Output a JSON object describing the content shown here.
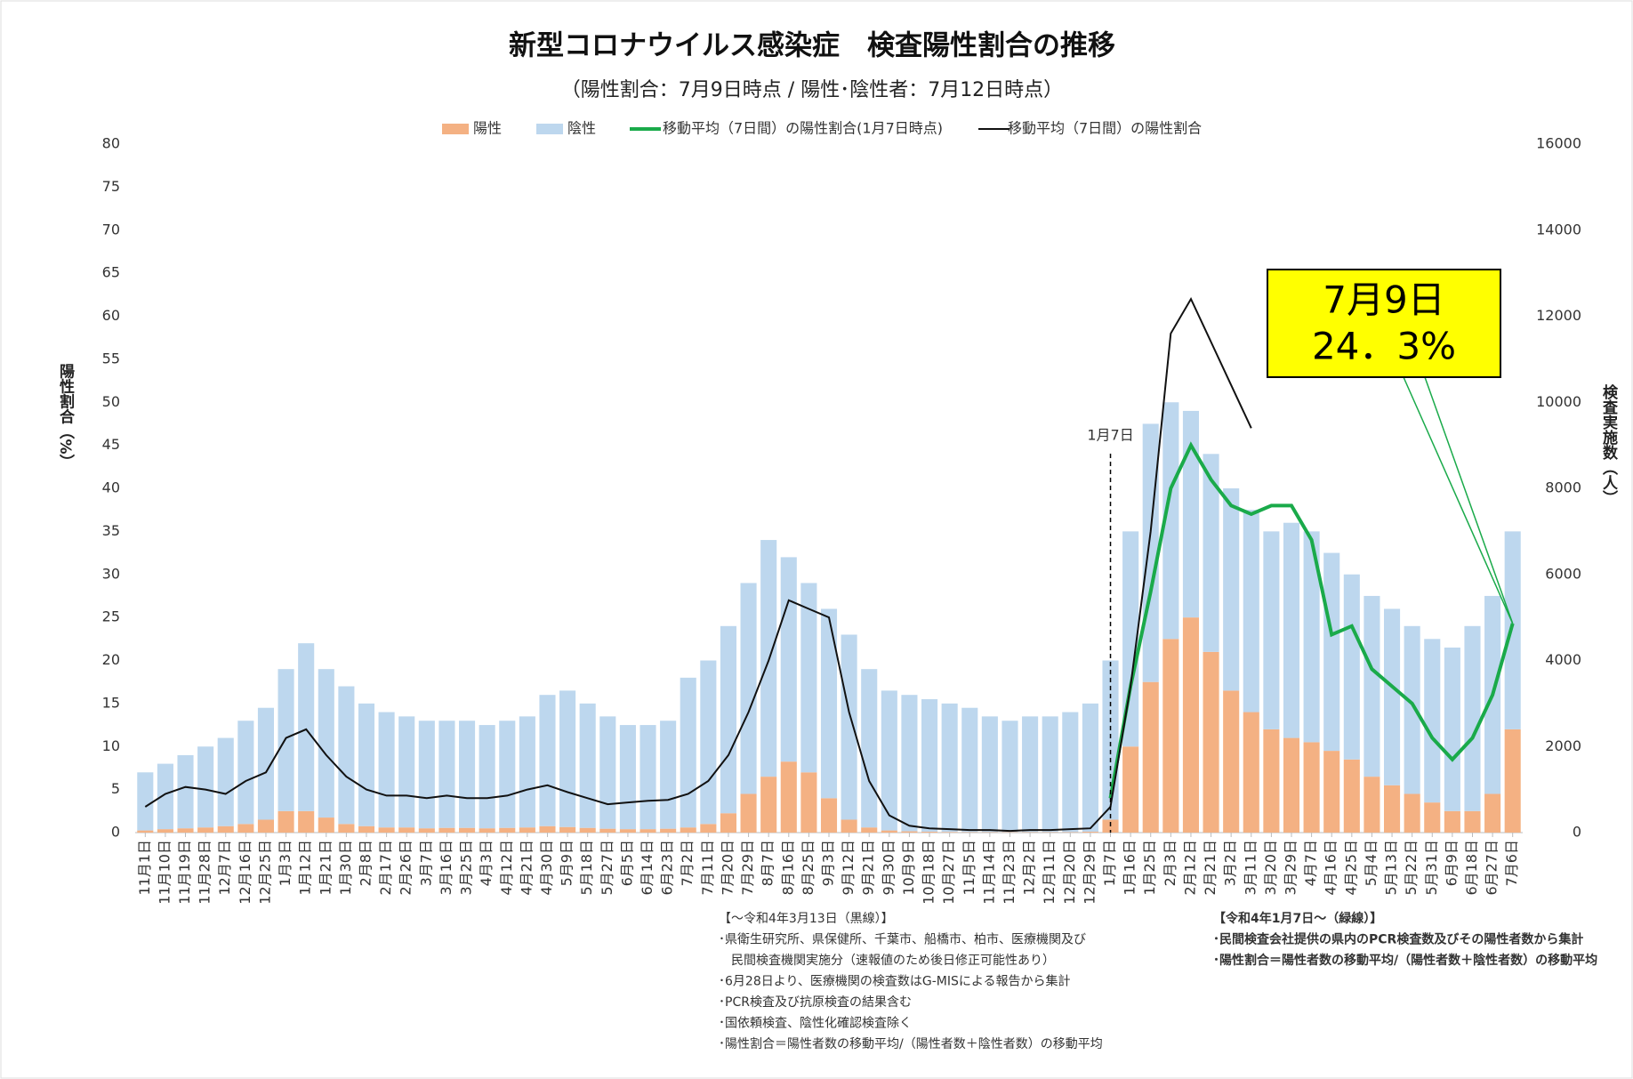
{
  "chart_data": {
    "type": "bar-line",
    "title": "新型コロナウイルス感染症　検査陽性割合の推移",
    "subtitle": "（陽性割合：7月9日時点 / 陽性･陰性者：7月12日時点）",
    "y_label": "陽性割合（%）",
    "y2_label": "検査実施数（人）",
    "annotation": "1月7日",
    "callout": [
      "7月9日",
      "24．3%"
    ],
    "notes_left": [
      "【～令和4年3月13日（黒線）】",
      "･県衛生研究所、県保健所、千葉市、船橋市、柏市、医療機関及び",
      "　民間検査機関実施分（速報値のため後日修正可能性あり）",
      "･6月28日より、医療機関の検査数はG-MISによる報告から集計",
      "･PCR検査及び抗原検査の結果含む",
      "･国依頼検査、陰性化確認検査除く",
      "･陽性割合＝陽性者数の移動平均/（陽性者数＋陰性者数）の移動平均"
    ],
    "notes_right": [
      "【令和4年1月7日～（緑線）】",
      "･民間検査会社提供の県内のPCR検査数及びその陽性者数から集計",
      "･陽性割合＝陽性者数の移動平均/（陽性者数＋陰性者数）の移動平均"
    ],
    "categories": [
      "11月1日",
      "11月10日",
      "11月19日",
      "11月28日",
      "12月7日",
      "12月16日",
      "12月25日",
      "1月3日",
      "1月12日",
      "1月21日",
      "1月30日",
      "2月8日",
      "2月17日",
      "2月26日",
      "3月7日",
      "3月16日",
      "3月25日",
      "4月3日",
      "4月12日",
      "4月21日",
      "4月30日",
      "5月9日",
      "5月18日",
      "5月27日",
      "6月5日",
      "6月14日",
      "6月23日",
      "7月2日",
      "7月11日",
      "7月20日",
      "7月29日",
      "8月7日",
      "8月16日",
      "8月25日",
      "9月3日",
      "9月12日",
      "9月21日",
      "9月30日",
      "10月9日",
      "10月18日",
      "10月27日",
      "11月5日",
      "11月14日",
      "11月23日",
      "12月2日",
      "12月11日",
      "12月20日",
      "12月29日",
      "1月7日",
      "1月16日",
      "1月25日",
      "2月3日",
      "2月12日",
      "2月21日",
      "3月2日",
      "3月11日",
      "3月20日",
      "3月29日",
      "4月7日",
      "4月16日",
      "4月25日",
      "5月4日",
      "5月13日",
      "5月22日",
      "5月31日",
      "6月9日",
      "6月18日",
      "6月27日",
      "7月6日"
    ],
    "series": [
      {
        "name": "陽性",
        "kind": "bar",
        "axis": "y2",
        "color": "#f4b183",
        "values": [
          50,
          80,
          100,
          120,
          150,
          200,
          300,
          500,
          500,
          350,
          200,
          150,
          120,
          120,
          100,
          110,
          110,
          100,
          110,
          120,
          150,
          130,
          110,
          90,
          80,
          80,
          90,
          120,
          200,
          450,
          900,
          1300,
          1650,
          1400,
          800,
          300,
          120,
          50,
          30,
          20,
          15,
          10,
          10,
          10,
          10,
          10,
          10,
          20,
          300,
          2000,
          3500,
          4500,
          5000,
          4200,
          3300,
          2800,
          2400,
          2200,
          2100,
          1900,
          1700,
          1300,
          1100,
          900,
          700,
          500,
          500,
          900,
          2400
        ]
      },
      {
        "name": "陰性",
        "kind": "bar",
        "axis": "y2",
        "color": "#bdd7ee",
        "values": [
          1350,
          1520,
          1700,
          1880,
          2050,
          2400,
          2600,
          3300,
          3900,
          3450,
          3200,
          2850,
          2680,
          2580,
          2500,
          2490,
          2490,
          2400,
          2490,
          2580,
          3050,
          3170,
          2890,
          2610,
          2420,
          2420,
          2510,
          3480,
          3800,
          4350,
          4900,
          5500,
          4750,
          4400,
          4400,
          4300,
          3680,
          3250,
          3170,
          3080,
          2985,
          2890,
          2690,
          2590,
          2690,
          2690,
          2790,
          2980,
          3700,
          5000,
          6000,
          5500,
          4800,
          4600,
          4700,
          4700,
          4600,
          5000,
          4900,
          4600,
          4300,
          4200,
          4100,
          3900,
          3800,
          3800,
          4300,
          4600,
          4600
        ]
      },
      {
        "name": "移動平均（7日間）の陽性割合(1月7日時点)",
        "kind": "line",
        "color": "#1aaa4a",
        "values": [
          null,
          null,
          null,
          null,
          null,
          null,
          null,
          null,
          null,
          null,
          null,
          null,
          null,
          null,
          null,
          null,
          null,
          null,
          null,
          null,
          null,
          null,
          null,
          null,
          null,
          null,
          null,
          null,
          null,
          null,
          null,
          null,
          null,
          null,
          null,
          null,
          null,
          null,
          null,
          null,
          null,
          null,
          null,
          null,
          null,
          null,
          null,
          null,
          4,
          17,
          28,
          40,
          45,
          41,
          38,
          37,
          38,
          38,
          34,
          23,
          24,
          19,
          17,
          15,
          11,
          8.5,
          11,
          16,
          24.3
        ]
      },
      {
        "name": "移動平均（7日間）の陽性割合",
        "kind": "line",
        "color": "#111111",
        "values": [
          3,
          4.5,
          5.3,
          5,
          4.5,
          6,
          7,
          11,
          12,
          9,
          6.5,
          5,
          4.3,
          4.3,
          4,
          4.3,
          4,
          4,
          4.3,
          5,
          5.5,
          4.7,
          4,
          3.3,
          3.5,
          3.7,
          3.8,
          4.5,
          6,
          9,
          14,
          20,
          27,
          26,
          25,
          14,
          6,
          2,
          0.8,
          0.5,
          0.4,
          0.3,
          0.3,
          0.2,
          0.3,
          0.3,
          0.4,
          0.5,
          3,
          17,
          35,
          58,
          62,
          57,
          52,
          47,
          null,
          null,
          null,
          null,
          null,
          null,
          null,
          null,
          null,
          null,
          null,
          null,
          null
        ]
      }
    ],
    "ylim": [
      0,
      80
    ],
    "yticks": [
      0,
      5,
      10,
      15,
      20,
      25,
      30,
      35,
      40,
      45,
      50,
      55,
      60,
      65,
      70,
      75,
      80
    ],
    "y2lim": [
      0,
      16000
    ],
    "y2ticks": [
      0,
      2000,
      4000,
      6000,
      8000,
      10000,
      12000,
      14000,
      16000
    ]
  }
}
